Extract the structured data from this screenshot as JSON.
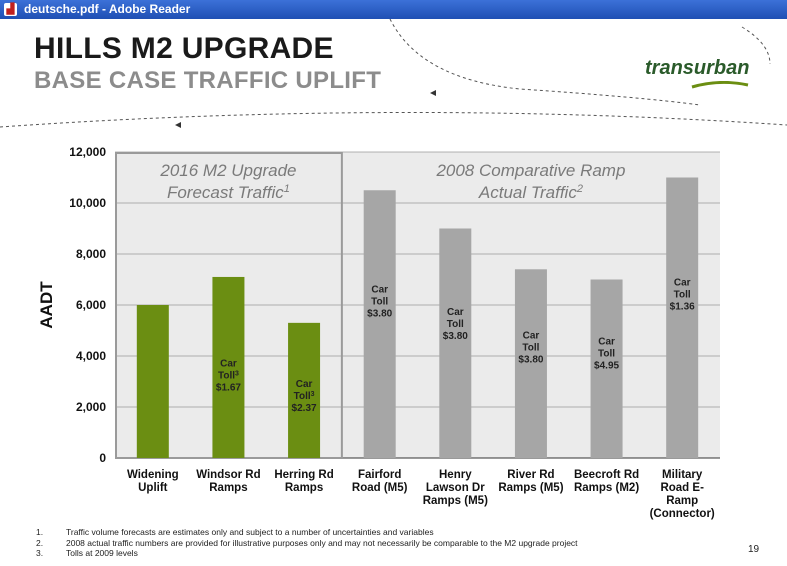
{
  "window": {
    "title": "deutsche.pdf - Adobe Reader"
  },
  "slide": {
    "title": "HILLS M2 UPGRADE",
    "subtitle": "BASE CASE TRAFFIC UPLIFT",
    "logo_text": "transurban",
    "page_number": "19",
    "footnotes": [
      {
        "num": "1.",
        "text": "Traffic volume forecasts are estimates only and subject to a number of uncertainties and variables"
      },
      {
        "num": "2.",
        "text": "2008 actual traffic numbers are provided for illustrative purposes only and may not necessarily be comparable to the M2 upgrade project"
      },
      {
        "num": "3.",
        "text": "Tolls at 2009 levels"
      }
    ]
  },
  "chart_data": {
    "type": "bar",
    "ylabel": "AADT",
    "xlabel": "",
    "ylim": [
      0,
      12000
    ],
    "yticks": [
      0,
      2000,
      4000,
      6000,
      8000,
      10000,
      12000
    ],
    "ytick_labels": [
      "0",
      "2,000",
      "4,000",
      "6,000",
      "8,000",
      "10,000",
      "12,000"
    ],
    "grid": true,
    "categories": [
      "Widening Uplift",
      "Windsor Rd Ramps",
      "Herring Rd Ramps",
      "Fairford Road (M5)",
      "Henry Lawson Dr Ramps (M5)",
      "River Rd Ramps (M5)",
      "Beecroft Rd Ramps (M2)",
      "Military Road E-Ramp (Connector)"
    ],
    "category_lines": [
      [
        "Widening",
        "Uplift"
      ],
      [
        "Windsor Rd",
        "Ramps"
      ],
      [
        "Herring Rd",
        "Ramps"
      ],
      [
        "Fairford",
        "Road (M5)"
      ],
      [
        "Henry",
        "Lawson Dr",
        "Ramps (M5)"
      ],
      [
        "River Rd",
        "Ramps (M5)"
      ],
      [
        "Beecroft Rd",
        "Ramps (M2)"
      ],
      [
        "Military",
        "Road E-",
        "Ramp",
        "(Connector)"
      ]
    ],
    "values": [
      6000,
      7100,
      5300,
      10500,
      9000,
      7400,
      7000,
      11000
    ],
    "colors": [
      "#6b8e12",
      "#6b8e12",
      "#6b8e12",
      "#a6a6a6",
      "#a6a6a6",
      "#a6a6a6",
      "#a6a6a6",
      "#a6a6a6"
    ],
    "toll_labels": [
      null,
      {
        "line1": "Car",
        "line2": "Toll",
        "sup": "3",
        "price": "$1.67"
      },
      {
        "line1": "Car",
        "line2": "Toll",
        "sup": "3",
        "price": "$2.37"
      },
      {
        "line1": "Car",
        "line2": "Toll",
        "sup": "",
        "price": "$3.80"
      },
      {
        "line1": "Car",
        "line2": "Toll",
        "sup": "",
        "price": "$3.80"
      },
      {
        "line1": "Car",
        "line2": "Toll",
        "sup": "",
        "price": "$3.80"
      },
      {
        "line1": "Car",
        "line2": "Toll",
        "sup": "",
        "price": "$4.95"
      },
      {
        "line1": "Car",
        "line2": "Toll",
        "sup": "",
        "price": "$1.36"
      }
    ],
    "groups": [
      {
        "line1": "2016 M2 Upgrade",
        "line2": "Forecast Traffic",
        "sup": "1",
        "bar_indices": [
          0,
          1,
          2
        ]
      },
      {
        "line1": "2008 Comparative Ramp",
        "line2": "Actual Traffic",
        "sup": "2",
        "bar_indices": [
          3,
          4,
          5,
          6,
          7
        ]
      }
    ]
  }
}
